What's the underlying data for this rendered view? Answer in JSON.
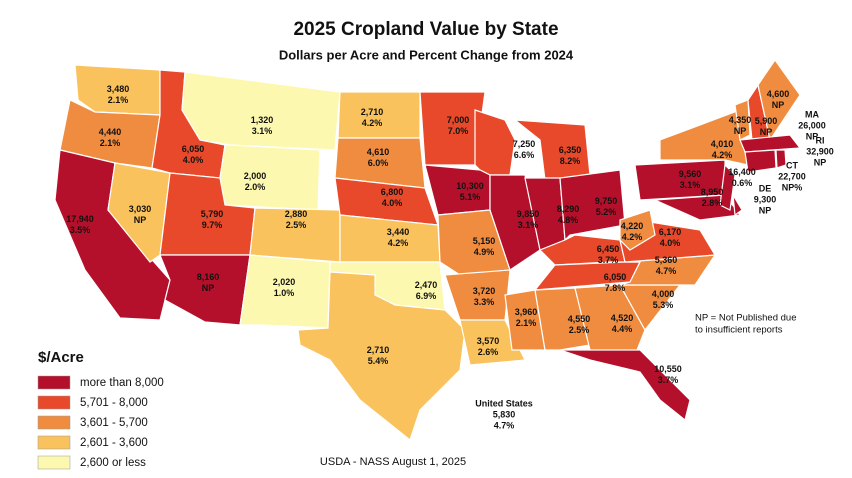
{
  "title": "2025 Cropland Value by State",
  "subtitle": "Dollars per Acre and Percent Change from 2024",
  "legend": {
    "title": "$/Acre",
    "items": [
      {
        "label": "more than 8,000",
        "color": "#b5102b"
      },
      {
        "label": "5,701 - 8,000",
        "color": "#e8492a"
      },
      {
        "label": "3,601 - 5,700",
        "color": "#f08c3f"
      },
      {
        "label": "2,601 - 3,600",
        "color": "#f9c25c"
      },
      {
        "label": "2,600 or less",
        "color": "#fdf8b0"
      }
    ]
  },
  "states": [
    {
      "value": "3,480",
      "change": "2.1%",
      "color": "#f9c25c"
    },
    {
      "value": "4,440",
      "change": "2.1%",
      "color": "#f08c3f"
    },
    {
      "value": "17,940",
      "change": "3.5%",
      "color": "#b5102b"
    },
    {
      "value": "3,030",
      "change": "NP",
      "color": "#f9c25c"
    },
    {
      "value": "6,050",
      "change": "4.0%",
      "color": "#e8492a"
    },
    {
      "value": "1,320",
      "change": "3.1%",
      "color": "#fdf8b0"
    },
    {
      "value": "2,000",
      "change": "2.0%",
      "color": "#fdf8b0"
    },
    {
      "value": "5,790",
      "change": "9.7%",
      "color": "#e8492a"
    },
    {
      "value": "2,880",
      "change": "2.5%",
      "color": "#f9c25c"
    },
    {
      "value": "8,160",
      "change": "NP",
      "color": "#b5102b"
    },
    {
      "value": "2,020",
      "change": "1.0%",
      "color": "#fdf8b0"
    },
    {
      "value": "2,710",
      "change": "4.2%",
      "color": "#f9c25c"
    },
    {
      "value": "4,610",
      "change": "6.0%",
      "color": "#f08c3f"
    },
    {
      "value": "6,800",
      "change": "4.0%",
      "color": "#e8492a"
    },
    {
      "value": "3,440",
      "change": "4.2%",
      "color": "#f9c25c"
    },
    {
      "value": "2,470",
      "change": "6.9%",
      "color": "#fdf8b0"
    },
    {
      "value": "2,710",
      "change": "5.4%",
      "color": "#f9c25c"
    },
    {
      "value": "7,000",
      "change": "7.0%",
      "color": "#e8492a"
    },
    {
      "value": "7,250",
      "change": "6.6%",
      "color": "#e8492a"
    },
    {
      "value": "10,300",
      "change": "5.1%",
      "color": "#b5102b"
    },
    {
      "value": "5,150",
      "change": "4.9%",
      "color": "#f08c3f"
    },
    {
      "value": "3,720",
      "change": "3.3%",
      "color": "#f08c3f"
    },
    {
      "value": "3,570",
      "change": "2.6%",
      "color": "#f9c25c"
    },
    {
      "value": "6,350",
      "change": "8.2%",
      "color": "#e8492a"
    },
    {
      "value": "9,850",
      "change": "3.1%",
      "color": "#b5102b"
    },
    {
      "value": "8,290",
      "change": "4.8%",
      "color": "#b5102b"
    },
    {
      "value": "9,750",
      "change": "5.2%",
      "color": "#b5102b"
    },
    {
      "value": "6,450",
      "change": "3.7%",
      "color": "#e8492a"
    },
    {
      "value": "6,050",
      "change": "7.8%",
      "color": "#e8492a"
    },
    {
      "value": "3,960",
      "change": "2.1%",
      "color": "#f08c3f"
    },
    {
      "value": "4,550",
      "change": "2.5%",
      "color": "#f08c3f"
    },
    {
      "value": "4,520",
      "change": "4.4%",
      "color": "#f08c3f"
    },
    {
      "value": "10,550",
      "change": "3.7%",
      "color": "#b5102b"
    },
    {
      "value": "4,000",
      "change": "5.3%",
      "color": "#f08c3f"
    },
    {
      "value": "5,360",
      "change": "4.7%",
      "color": "#f08c3f"
    },
    {
      "value": "6,170",
      "change": "4.0%",
      "color": "#e8492a"
    },
    {
      "value": "4,220",
      "change": "4.2%",
      "color": "#f08c3f"
    },
    {
      "value": "9,560",
      "change": "3.1%",
      "color": "#b5102b"
    },
    {
      "value": "4,010",
      "change": "4.2%",
      "color": "#f08c3f"
    },
    {
      "value": "16,400",
      "change": "0.6%",
      "color": "#b5102b"
    },
    {
      "value": "8,950",
      "change": "2.8%",
      "color": "#b5102b"
    },
    {
      "value": "4,350",
      "change": "NP",
      "color": "#f08c3f"
    },
    {
      "value": "5,900",
      "change": "NP",
      "color": "#e8492a"
    },
    {
      "value": "4,600",
      "change": "NP",
      "color": "#f08c3f"
    },
    {
      "name": "MA",
      "value": "26,000",
      "change": "NP",
      "color": "#b5102b"
    },
    {
      "name": "CT",
      "value": "22,700",
      "change": "NP%",
      "color": "#b5102b"
    },
    {
      "name": "RI",
      "value": "32,900",
      "change": "NP",
      "color": "#b5102b"
    },
    {
      "name": "DE",
      "value": "9,300",
      "change": "NP",
      "color": "#b5102b"
    }
  ],
  "national": {
    "name": "United States",
    "value": "5,830",
    "change": "4.7%"
  },
  "note": [
    "NP = Not Published due",
    "to insufficient reports"
  ],
  "source": "USDA - NASS August 1, 2025"
}
